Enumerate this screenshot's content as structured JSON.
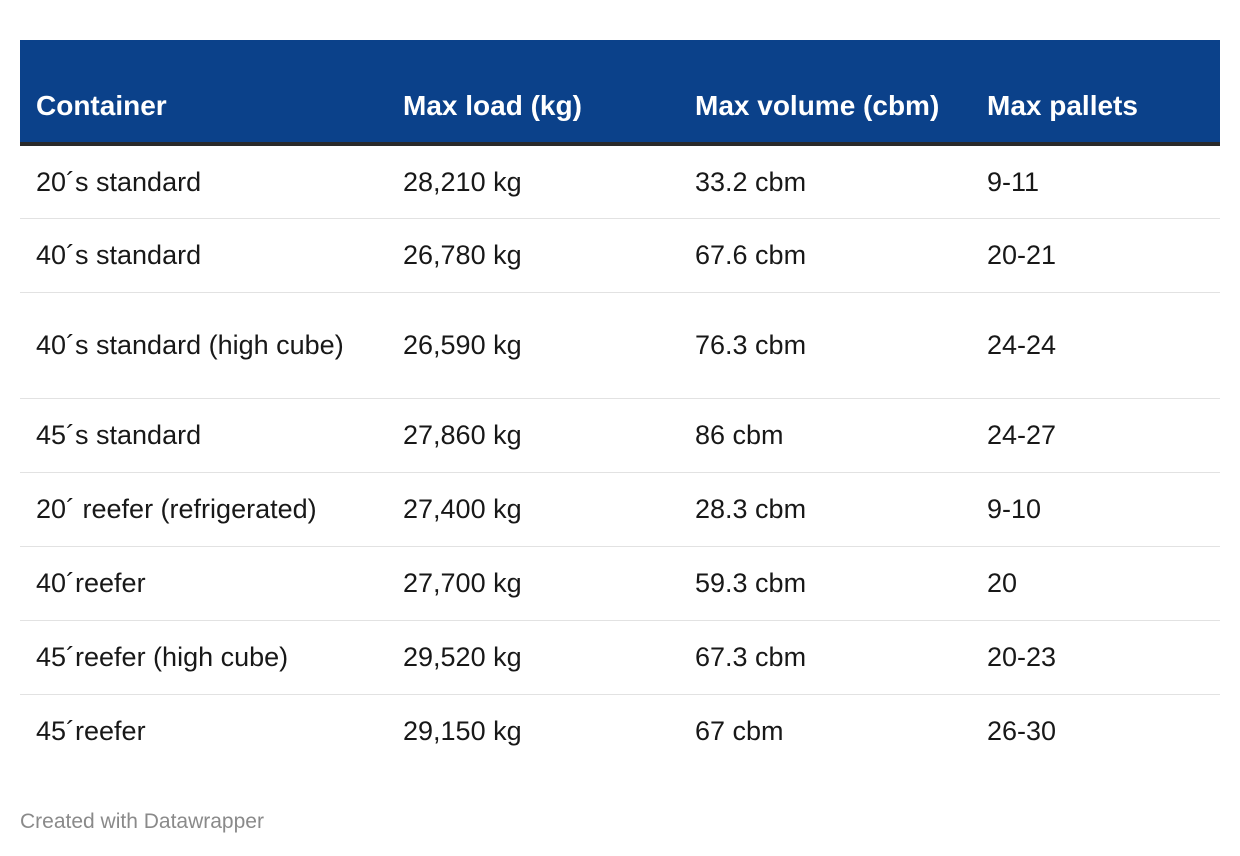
{
  "chart_data": {
    "type": "table",
    "columns": [
      "Container",
      "Max load (kg)",
      "Max volume (cbm)",
      "Max pallets"
    ],
    "rows": [
      [
        "20´s standard",
        "28,210 kg",
        "33.2 cbm",
        "9-11"
      ],
      [
        "40´s standard",
        "26,780 kg",
        "67.6 cbm",
        "20-21"
      ],
      [
        "40´s standard (high cube)",
        "26,590 kg",
        "76.3 cbm",
        "24-24"
      ],
      [
        "45´s standard",
        "27,860 kg",
        "86 cbm",
        "24-27"
      ],
      [
        "20´ reefer (refrigerated)",
        "27,400 kg",
        "28.3 cbm",
        "9-10"
      ],
      [
        "40´reefer",
        "27,700 kg",
        "59.3 cbm",
        "20"
      ],
      [
        "45´reefer (high cube)",
        "29,520 kg",
        "67.3 cbm",
        "20-23"
      ],
      [
        "45´reefer",
        "29,150 kg",
        "67 cbm",
        "26-30"
      ]
    ],
    "header_color": "#0b418a"
  },
  "footer": {
    "credit": "Created with Datawrapper"
  }
}
